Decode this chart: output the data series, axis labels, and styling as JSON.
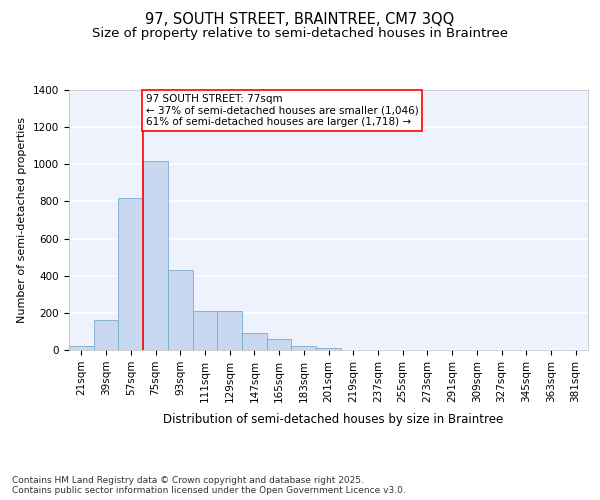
{
  "title": "97, SOUTH STREET, BRAINTREE, CM7 3QQ",
  "subtitle": "Size of property relative to semi-detached houses in Braintree",
  "xlabel": "Distribution of semi-detached houses by size in Braintree",
  "ylabel": "Number of semi-detached properties",
  "categories": [
    "21sqm",
    "39sqm",
    "57sqm",
    "75sqm",
    "93sqm",
    "111sqm",
    "129sqm",
    "147sqm",
    "165sqm",
    "183sqm",
    "201sqm",
    "219sqm",
    "237sqm",
    "255sqm",
    "273sqm",
    "291sqm",
    "309sqm",
    "327sqm",
    "345sqm",
    "363sqm",
    "381sqm"
  ],
  "values": [
    20,
    160,
    820,
    1020,
    430,
    210,
    210,
    90,
    60,
    20,
    12,
    0,
    0,
    0,
    0,
    0,
    0,
    0,
    0,
    0,
    0
  ],
  "bar_color": "#c8d8f0",
  "bar_edge_color": "#7aaacc",
  "background_color": "#eef2fc",
  "grid_color": "#ffffff",
  "property_line_color": "red",
  "property_line_x": 2.5,
  "annotation_text": "97 SOUTH STREET: 77sqm\n← 37% of semi-detached houses are smaller (1,046)\n61% of semi-detached houses are larger (1,718) →",
  "annotation_box_color": "white",
  "annotation_box_edge_color": "red",
  "footnote": "Contains HM Land Registry data © Crown copyright and database right 2025.\nContains public sector information licensed under the Open Government Licence v3.0.",
  "ylim": [
    0,
    1400
  ],
  "yticks": [
    0,
    200,
    400,
    600,
    800,
    1000,
    1200,
    1400
  ],
  "title_fontsize": 10.5,
  "subtitle_fontsize": 9.5,
  "xlabel_fontsize": 8.5,
  "ylabel_fontsize": 8,
  "tick_fontsize": 7.5,
  "annotation_fontsize": 7.5,
  "footnote_fontsize": 6.5
}
